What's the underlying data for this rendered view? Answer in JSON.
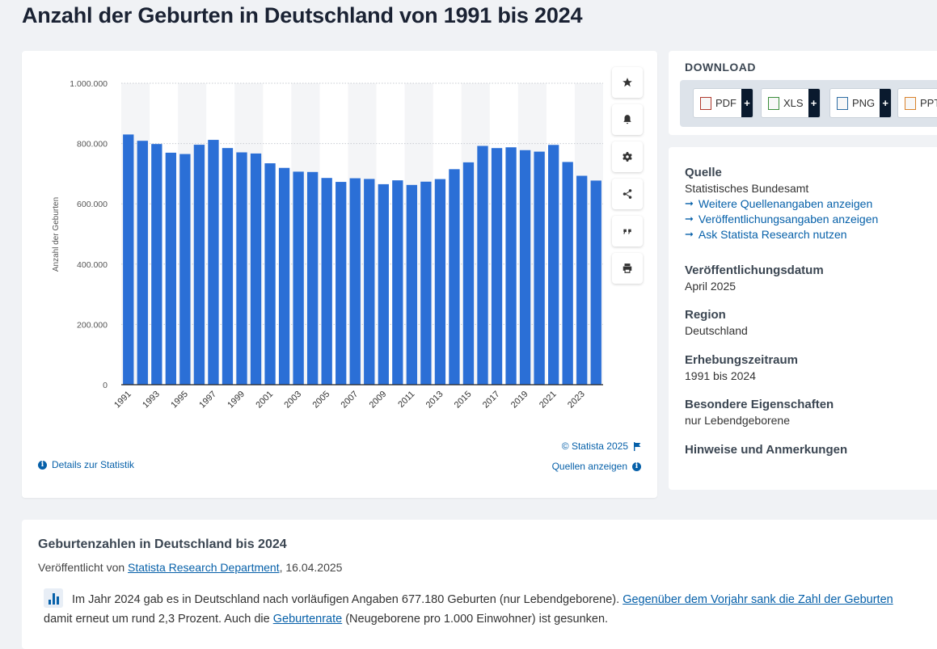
{
  "page": {
    "title": "Anzahl der Geburten in Deutschland von 1991 bis 2024"
  },
  "chart_data": {
    "type": "bar",
    "title": "",
    "xlabel": "",
    "ylabel": "Anzahl der Geburten",
    "ylim": [
      0,
      1000000
    ],
    "yticks": [
      0,
      200000,
      400000,
      600000,
      800000,
      1000000
    ],
    "ytick_labels": [
      "0",
      "200.000",
      "400.000",
      "600.000",
      "800.000",
      "1.000.000"
    ],
    "grid": true,
    "bar_color": "#2b6fd6",
    "categories": [
      "1991",
      "1992",
      "1993",
      "1994",
      "1995",
      "1996",
      "1997",
      "1998",
      "1999",
      "2000",
      "2001",
      "2002",
      "2003",
      "2004",
      "2005",
      "2006",
      "2007",
      "2008",
      "2009",
      "2010",
      "2011",
      "2012",
      "2013",
      "2014",
      "2015",
      "2016",
      "2017",
      "2018",
      "2019",
      "2020",
      "2021",
      "2022",
      "2023",
      "2024"
    ],
    "xtick_labels": [
      "1991",
      "1993",
      "1995",
      "1997",
      "1999",
      "2001",
      "2003",
      "2005",
      "2007",
      "2009",
      "2011",
      "2013",
      "2015",
      "2017",
      "2019",
      "2021",
      "2023"
    ],
    "values": [
      830019,
      809114,
      798447,
      769603,
      765221,
      796013,
      812173,
      785034,
      770744,
      766999,
      734475,
      719250,
      706721,
      705622,
      685795,
      672724,
      684862,
      682514,
      665126,
      677947,
      662685,
      673544,
      682069,
      714927,
      737575,
      792141,
      784901,
      787523,
      778090,
      773144,
      795492,
      738819,
      692989,
      677180
    ]
  },
  "chart_footer": {
    "copyright": "© Statista 2025",
    "details": "Details zur Statistik",
    "sources": "Quellen anzeigen"
  },
  "tools": [
    "star-icon",
    "bell-icon",
    "gear-icon",
    "share-icon",
    "quote-icon",
    "print-icon"
  ],
  "download": {
    "title": "DOWNLOAD",
    "buttons": [
      {
        "label": "PDF",
        "color": "#c0392b"
      },
      {
        "label": "XLS",
        "color": "#3a8d3a"
      },
      {
        "label": "PNG",
        "color": "#2e6da4"
      },
      {
        "label": "PPT",
        "color": "#d9822b"
      }
    ]
  },
  "info": {
    "source_head": "Quelle",
    "source_val": "Statistisches Bundesamt",
    "links": [
      "Weitere Quellenangaben anzeigen",
      "Veröffentlichungsangaben anzeigen",
      "Ask Statista Research nutzen"
    ],
    "pubdate_head": "Veröffentlichungsdatum",
    "pubdate_val": "April 2025",
    "region_head": "Region",
    "region_val": "Deutschland",
    "period_head": "Erhebungszeitraum",
    "period_val": "1991 bis 2024",
    "special_head": "Besondere Eigenschaften",
    "special_val": "nur Lebendgeborene",
    "notes_head": "Hinweise und Anmerkungen"
  },
  "article": {
    "title": "Geburtenzahlen in Deutschland bis 2024",
    "pub_prefix": "Veröffentlicht von ",
    "pub_author": "Statista Research Department",
    "pub_suffix": ", 16.04.2025",
    "text_1": "Im Jahr 2024 gab es in Deutschland nach vorläufigen Angaben 677.180 Geburten (nur Lebendgeborene). ",
    "link_1": "Gegenüber dem Vorjahr sank die Zahl der Geburten",
    "text_2": " damit erneut um rund 2,3 Prozent. Auch die ",
    "link_2": "Geburtenrate",
    "text_3": " (Neugeborene pro 1.000 Einwohner) ist gesunken."
  }
}
